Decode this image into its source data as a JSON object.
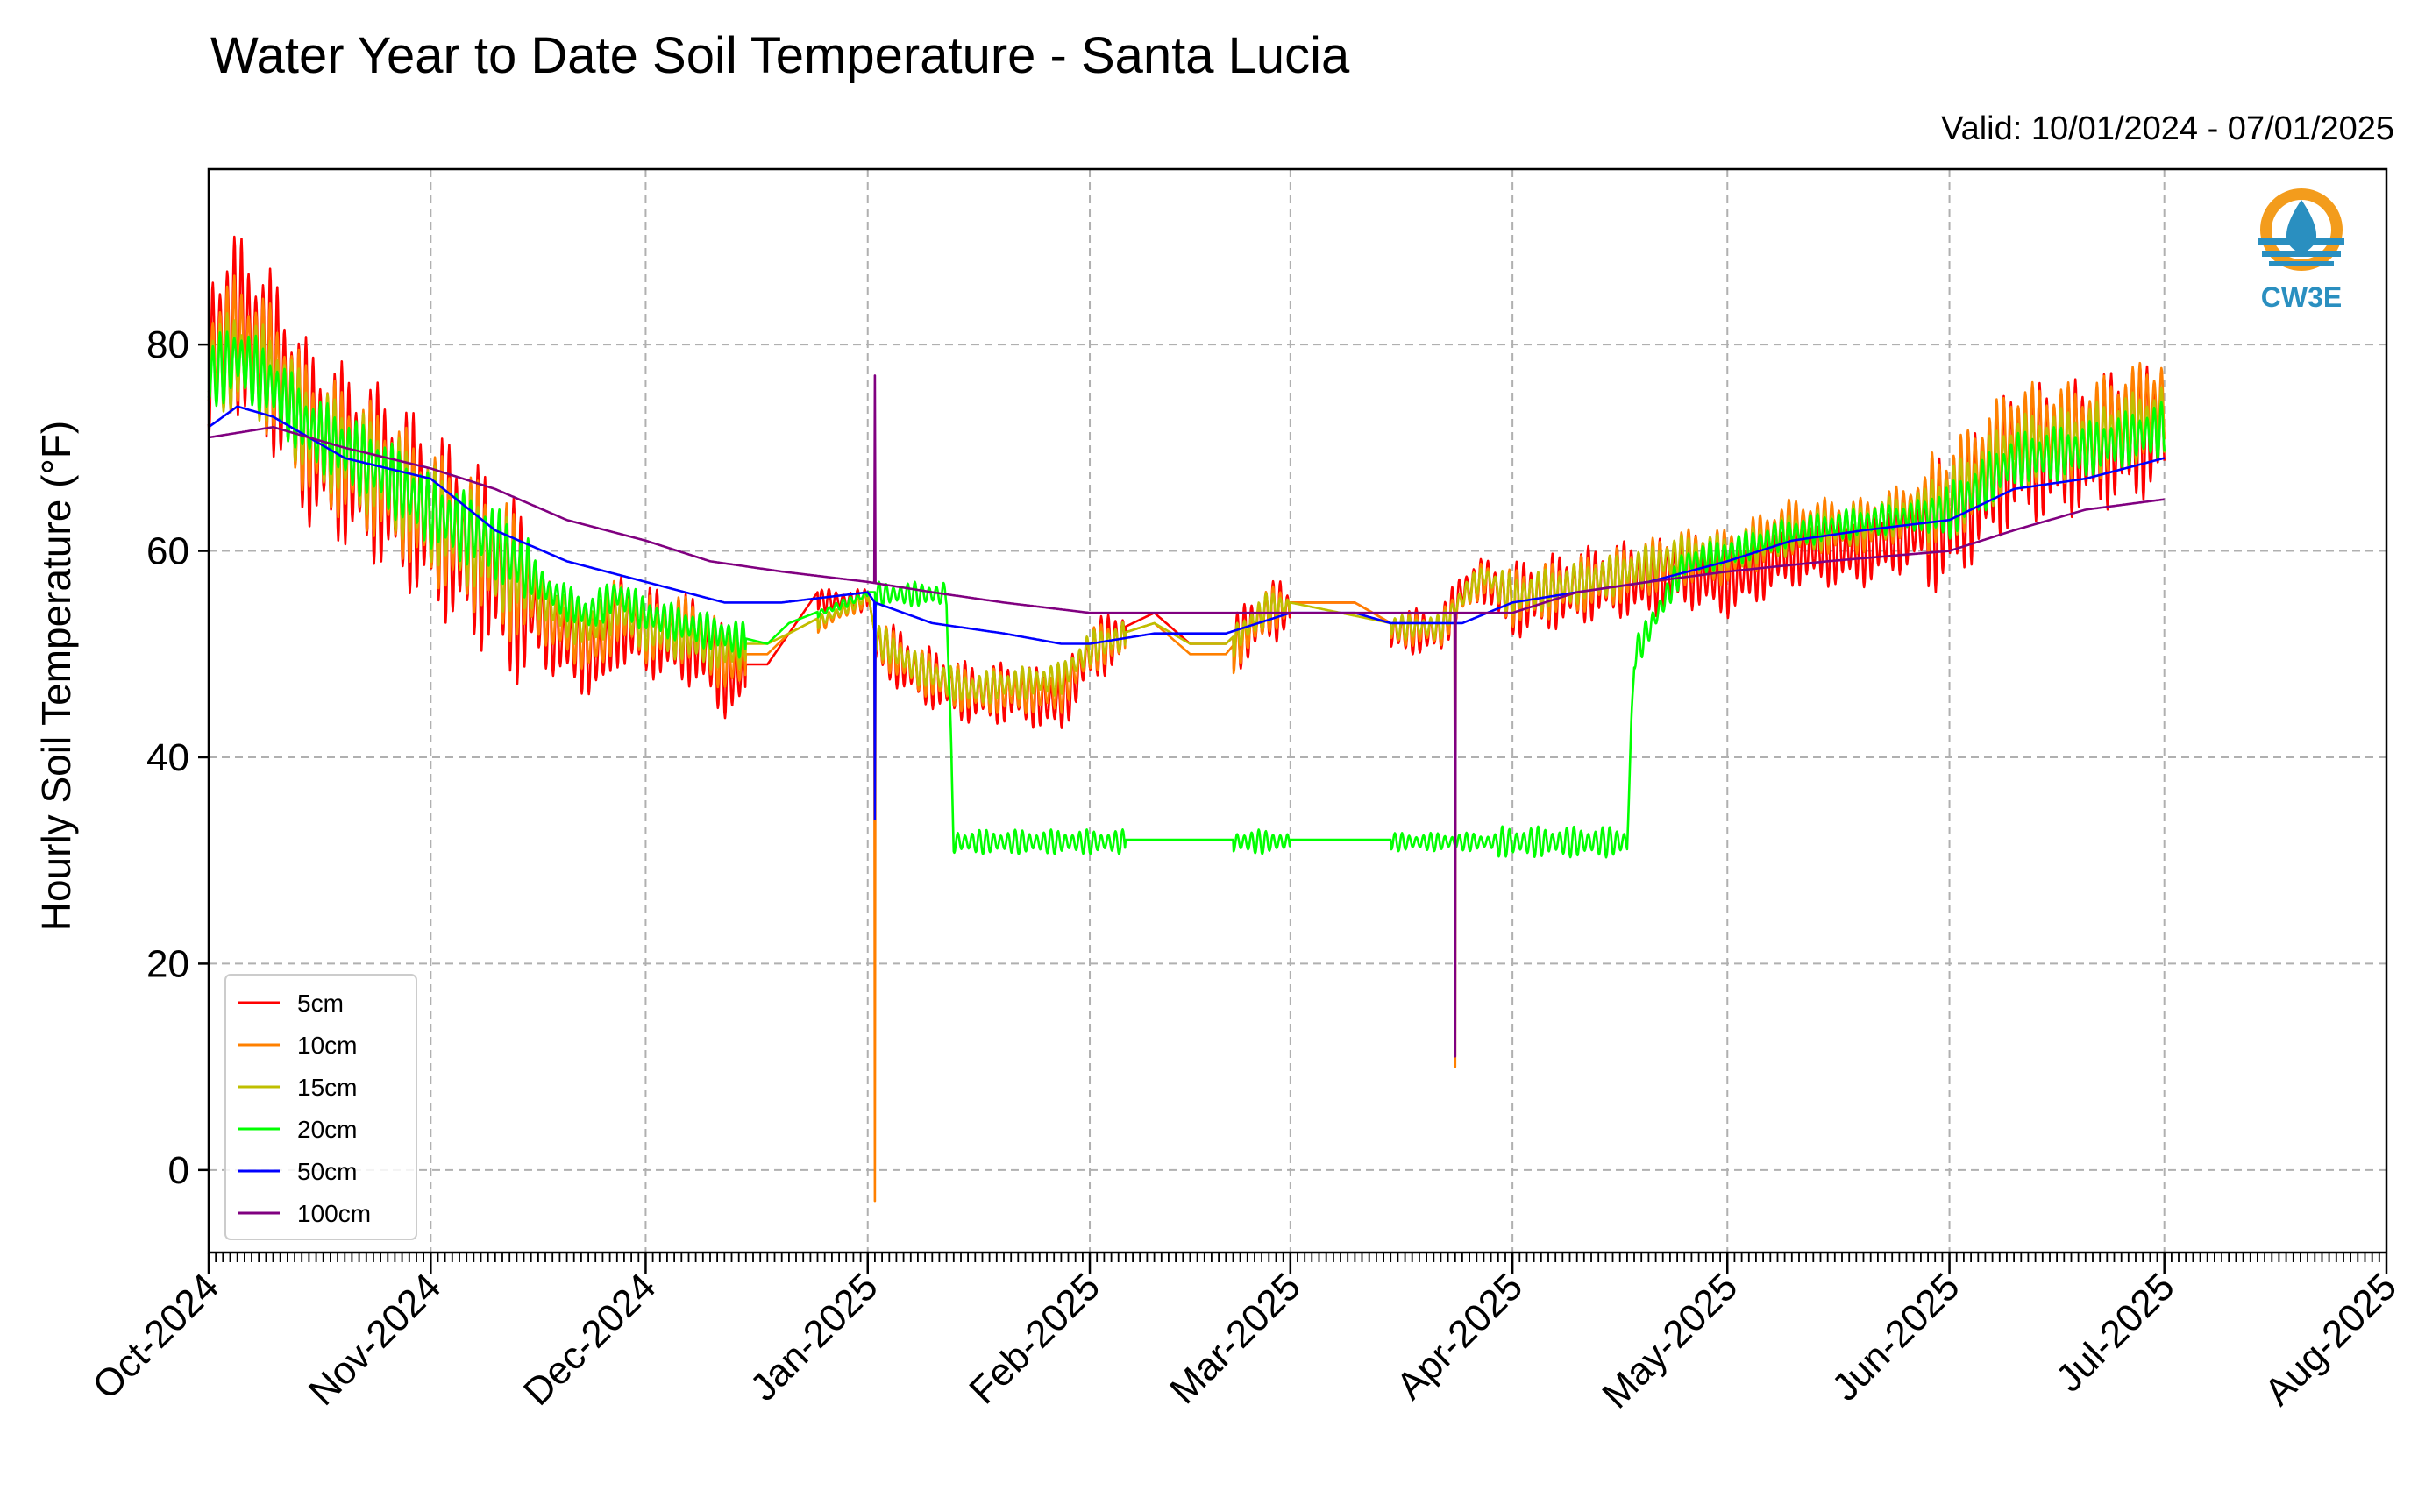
{
  "header": {
    "title": "Water Year to Date Soil Temperature - Santa Lucia",
    "valid": "Valid: 10/01/2024 - 07/01/2025"
  },
  "logo": {
    "text": "CW3E",
    "icon": "water-drop-sun-icon",
    "colors": {
      "ring": "#f39c1c",
      "drop": "#2a8fc0"
    }
  },
  "chart_data": {
    "type": "line",
    "title": "Water Year to Date Soil Temperature - Santa Lucia",
    "xlabel": "",
    "ylabel": "Hourly Soil Temperature (°F)",
    "xlim": [
      "2024-10-01",
      "2025-08-01"
    ],
    "ylim": [
      -8,
      97
    ],
    "x_ticks": [
      {
        "date": "2024-10-01",
        "label": "Oct-2024"
      },
      {
        "date": "2024-11-01",
        "label": "Nov-2024"
      },
      {
        "date": "2024-12-01",
        "label": "Dec-2024"
      },
      {
        "date": "2025-01-01",
        "label": "Jan-2025"
      },
      {
        "date": "2025-02-01",
        "label": "Feb-2025"
      },
      {
        "date": "2025-03-01",
        "label": "Mar-2025"
      },
      {
        "date": "2025-04-01",
        "label": "Apr-2025"
      },
      {
        "date": "2025-05-01",
        "label": "May-2025"
      },
      {
        "date": "2025-06-01",
        "label": "Jun-2025"
      },
      {
        "date": "2025-07-01",
        "label": "Jul-2025"
      },
      {
        "date": "2025-08-01",
        "label": "Aug-2025"
      }
    ],
    "y_ticks": [
      0,
      20,
      40,
      60,
      80
    ],
    "grid": true,
    "legend_position": "lower-left",
    "series": [
      {
        "name": "5cm",
        "color": "#ff0000",
        "amp": 0.75,
        "offset": -0.8,
        "points": [
          [
            "2024-10-01",
            80
          ],
          [
            "2024-10-05",
            83
          ],
          [
            "2024-10-10",
            79
          ],
          [
            "2024-10-15",
            72
          ],
          [
            "2024-10-25",
            68
          ],
          [
            "2024-11-01",
            64
          ],
          [
            "2024-11-10",
            59
          ],
          [
            "2024-11-18",
            53
          ],
          [
            "2024-11-23",
            51
          ],
          [
            "2024-11-25",
            51
          ],
          [
            "2024-11-27",
            54
          ],
          [
            "2024-12-01",
            53
          ],
          [
            "2024-12-08",
            52
          ],
          [
            "2024-12-12",
            49
          ],
          [
            "2024-12-18",
            49
          ],
          [
            "2024-12-21",
            52
          ],
          [
            "2024-12-25",
            56
          ],
          [
            "2025-01-01",
            56
          ],
          [
            "2025-01-02",
            52
          ],
          [
            "2025-01-08",
            49
          ],
          [
            "2025-01-15",
            47
          ],
          [
            "2025-01-22",
            47
          ],
          [
            "2025-01-28",
            46
          ],
          [
            "2025-02-01",
            51
          ],
          [
            "2025-02-10",
            54
          ],
          [
            "2025-02-15",
            51
          ],
          [
            "2025-02-20",
            51
          ],
          [
            "2025-02-26",
            55
          ],
          [
            "2025-03-01",
            55
          ],
          [
            "2025-03-10",
            55
          ],
          [
            "2025-03-15",
            53
          ],
          [
            "2025-03-22",
            53
          ],
          [
            "2025-03-25",
            57
          ],
          [
            "2025-03-28",
            58
          ],
          [
            "2025-04-01",
            56
          ],
          [
            "2025-04-08",
            57
          ],
          [
            "2025-04-15",
            58
          ],
          [
            "2025-04-20",
            58
          ],
          [
            "2025-04-25",
            59
          ],
          [
            "2025-05-01",
            58
          ],
          [
            "2025-05-10",
            61
          ],
          [
            "2025-05-20",
            61
          ],
          [
            "2025-06-01",
            64
          ],
          [
            "2025-06-10",
            70
          ],
          [
            "2025-06-20",
            71
          ],
          [
            "2025-07-01",
            73
          ]
        ],
        "spikes": []
      },
      {
        "name": "10cm",
        "color": "#ff8000",
        "amp": 0.55,
        "offset": -0.6,
        "points": [
          [
            "2024-10-01",
            79
          ],
          [
            "2024-10-05",
            81
          ],
          [
            "2024-10-10",
            78
          ],
          [
            "2024-10-15",
            72
          ],
          [
            "2024-10-25",
            68
          ],
          [
            "2024-11-01",
            64
          ],
          [
            "2024-11-10",
            60
          ],
          [
            "2024-11-18",
            54
          ],
          [
            "2024-11-23",
            52
          ],
          [
            "2024-11-25",
            52
          ],
          [
            "2024-11-27",
            55
          ],
          [
            "2024-12-01",
            53
          ],
          [
            "2024-12-08",
            53
          ],
          [
            "2024-12-12",
            50
          ],
          [
            "2024-12-18",
            50
          ],
          [
            "2024-12-21",
            52
          ],
          [
            "2025-01-01",
            56
          ],
          [
            "2025-01-02",
            52
          ],
          [
            "2025-01-08",
            49
          ],
          [
            "2025-01-15",
            47
          ],
          [
            "2025-01-22",
            47
          ],
          [
            "2025-01-28",
            47
          ],
          [
            "2025-02-01",
            51
          ],
          [
            "2025-02-10",
            53
          ],
          [
            "2025-02-15",
            50
          ],
          [
            "2025-02-20",
            50
          ],
          [
            "2025-02-26",
            55
          ],
          [
            "2025-03-01",
            55
          ],
          [
            "2025-03-10",
            55
          ],
          [
            "2025-03-15",
            53
          ],
          [
            "2025-03-22",
            53
          ],
          [
            "2025-03-25",
            56
          ],
          [
            "2025-03-28",
            58
          ],
          [
            "2025-04-01",
            56
          ],
          [
            "2025-04-08",
            57
          ],
          [
            "2025-04-15",
            58
          ],
          [
            "2025-04-20",
            59
          ],
          [
            "2025-04-25",
            60
          ],
          [
            "2025-05-01",
            60
          ],
          [
            "2025-05-10",
            63
          ],
          [
            "2025-05-20",
            63
          ],
          [
            "2025-06-01",
            66
          ],
          [
            "2025-06-10",
            72
          ],
          [
            "2025-06-20",
            72
          ],
          [
            "2025-07-01",
            75
          ]
        ],
        "spikes": [
          [
            "2025-01-02",
            -3
          ],
          [
            "2025-03-24",
            10
          ]
        ]
      },
      {
        "name": "15cm",
        "color": "#bfbf00",
        "amp": 0.4,
        "offset": -0.4,
        "points": [
          [
            "2024-10-01",
            78
          ],
          [
            "2024-10-05",
            79
          ],
          [
            "2024-10-10",
            77
          ],
          [
            "2024-10-15",
            72
          ],
          [
            "2024-10-25",
            68
          ],
          [
            "2024-11-01",
            64
          ],
          [
            "2024-11-10",
            60
          ],
          [
            "2024-11-18",
            55
          ],
          [
            "2024-11-23",
            53
          ],
          [
            "2024-11-27",
            55
          ],
          [
            "2024-12-01",
            53
          ],
          [
            "2024-12-12",
            51
          ],
          [
            "2024-12-18",
            51
          ],
          [
            "2024-12-21",
            52
          ],
          [
            "2025-01-01",
            56
          ],
          [
            "2025-01-02",
            52
          ],
          [
            "2025-01-08",
            49
          ],
          [
            "2025-01-15",
            47
          ],
          [
            "2025-01-28",
            48
          ],
          [
            "2025-02-01",
            51
          ],
          [
            "2025-02-10",
            53
          ],
          [
            "2025-02-15",
            51
          ],
          [
            "2025-02-20",
            51
          ],
          [
            "2025-02-26",
            55
          ],
          [
            "2025-03-01",
            55
          ],
          [
            "2025-03-15",
            53
          ],
          [
            "2025-03-22",
            53
          ],
          [
            "2025-03-25",
            56
          ],
          [
            "2025-03-28",
            58
          ],
          [
            "2025-04-01",
            56
          ],
          [
            "2025-04-15",
            58
          ],
          [
            "2025-04-25",
            60
          ],
          [
            "2025-05-01",
            60
          ],
          [
            "2025-05-10",
            62
          ],
          [
            "2025-05-20",
            63
          ],
          [
            "2025-06-01",
            65
          ],
          [
            "2025-06-10",
            70
          ],
          [
            "2025-06-20",
            71
          ],
          [
            "2025-07-01",
            73
          ]
        ],
        "spikes": []
      },
      {
        "name": "20cm",
        "color": "#00ff00",
        "amp": 0.3,
        "offset": -0.2,
        "points": [
          [
            "2024-10-01",
            77
          ],
          [
            "2024-10-05",
            79
          ],
          [
            "2024-10-10",
            76
          ],
          [
            "2024-10-15",
            72
          ],
          [
            "2024-10-25",
            68
          ],
          [
            "2024-11-01",
            64
          ],
          [
            "2024-11-10",
            61
          ],
          [
            "2024-11-18",
            56
          ],
          [
            "2024-11-23",
            54
          ],
          [
            "2024-11-27",
            56
          ],
          [
            "2024-12-01",
            54
          ],
          [
            "2024-12-12",
            52
          ],
          [
            "2024-12-18",
            51
          ],
          [
            "2024-12-21",
            53
          ],
          [
            "2025-01-01",
            56
          ],
          [
            "2025-01-12",
            56
          ],
          [
            "2025-01-13",
            32
          ],
          [
            "2025-04-17",
            32
          ],
          [
            "2025-04-18",
            50
          ],
          [
            "2025-04-25",
            59
          ],
          [
            "2025-05-01",
            60
          ],
          [
            "2025-05-10",
            62
          ],
          [
            "2025-05-20",
            63
          ],
          [
            "2025-06-01",
            64
          ],
          [
            "2025-06-10",
            69
          ],
          [
            "2025-06-20",
            70
          ],
          [
            "2025-07-01",
            72
          ]
        ],
        "spikes": []
      },
      {
        "name": "50cm",
        "color": "#0000ff",
        "amp": 0,
        "offset": 0,
        "points": [
          [
            "2024-10-01",
            72
          ],
          [
            "2024-10-05",
            74
          ],
          [
            "2024-10-10",
            73
          ],
          [
            "2024-10-20",
            69
          ],
          [
            "2024-11-01",
            67
          ],
          [
            "2024-11-10",
            62
          ],
          [
            "2024-11-20",
            59
          ],
          [
            "2024-12-01",
            57
          ],
          [
            "2024-12-12",
            55
          ],
          [
            "2024-12-20",
            55
          ],
          [
            "2025-01-01",
            56
          ],
          [
            "2025-01-02",
            55
          ],
          [
            "2025-01-10",
            53
          ],
          [
            "2025-01-20",
            52
          ],
          [
            "2025-01-28",
            51
          ],
          [
            "2025-02-01",
            51
          ],
          [
            "2025-02-10",
            52
          ],
          [
            "2025-02-20",
            52
          ],
          [
            "2025-03-01",
            54
          ],
          [
            "2025-03-10",
            54
          ],
          [
            "2025-03-15",
            53
          ],
          [
            "2025-03-25",
            53
          ],
          [
            "2025-04-01",
            55
          ],
          [
            "2025-04-10",
            56
          ],
          [
            "2025-04-20",
            57
          ],
          [
            "2025-05-01",
            59
          ],
          [
            "2025-05-10",
            61
          ],
          [
            "2025-05-20",
            62
          ],
          [
            "2025-06-01",
            63
          ],
          [
            "2025-06-10",
            66
          ],
          [
            "2025-06-20",
            67
          ],
          [
            "2025-07-01",
            69
          ]
        ],
        "spikes": [
          [
            "2025-01-02",
            34
          ]
        ]
      },
      {
        "name": "100cm",
        "color": "#800080",
        "amp": 0,
        "offset": 0,
        "points": [
          [
            "2024-10-01",
            71
          ],
          [
            "2024-10-10",
            72
          ],
          [
            "2024-10-20",
            70
          ],
          [
            "2024-11-01",
            68
          ],
          [
            "2024-11-10",
            66
          ],
          [
            "2024-11-20",
            63
          ],
          [
            "2024-12-01",
            61
          ],
          [
            "2024-12-10",
            59
          ],
          [
            "2024-12-20",
            58
          ],
          [
            "2025-01-01",
            57
          ],
          [
            "2025-01-10",
            56
          ],
          [
            "2025-01-20",
            55
          ],
          [
            "2025-02-01",
            54
          ],
          [
            "2025-02-15",
            54
          ],
          [
            "2025-03-01",
            54
          ],
          [
            "2025-03-15",
            54
          ],
          [
            "2025-03-25",
            54
          ],
          [
            "2025-04-01",
            54
          ],
          [
            "2025-04-10",
            56
          ],
          [
            "2025-04-20",
            57
          ],
          [
            "2025-05-01",
            58
          ],
          [
            "2025-05-15",
            59
          ],
          [
            "2025-06-01",
            60
          ],
          [
            "2025-06-10",
            62
          ],
          [
            "2025-06-20",
            64
          ],
          [
            "2025-07-01",
            65
          ]
        ],
        "spikes": [
          [
            "2025-01-02",
            77
          ],
          [
            "2025-03-24",
            11
          ]
        ]
      }
    ]
  }
}
